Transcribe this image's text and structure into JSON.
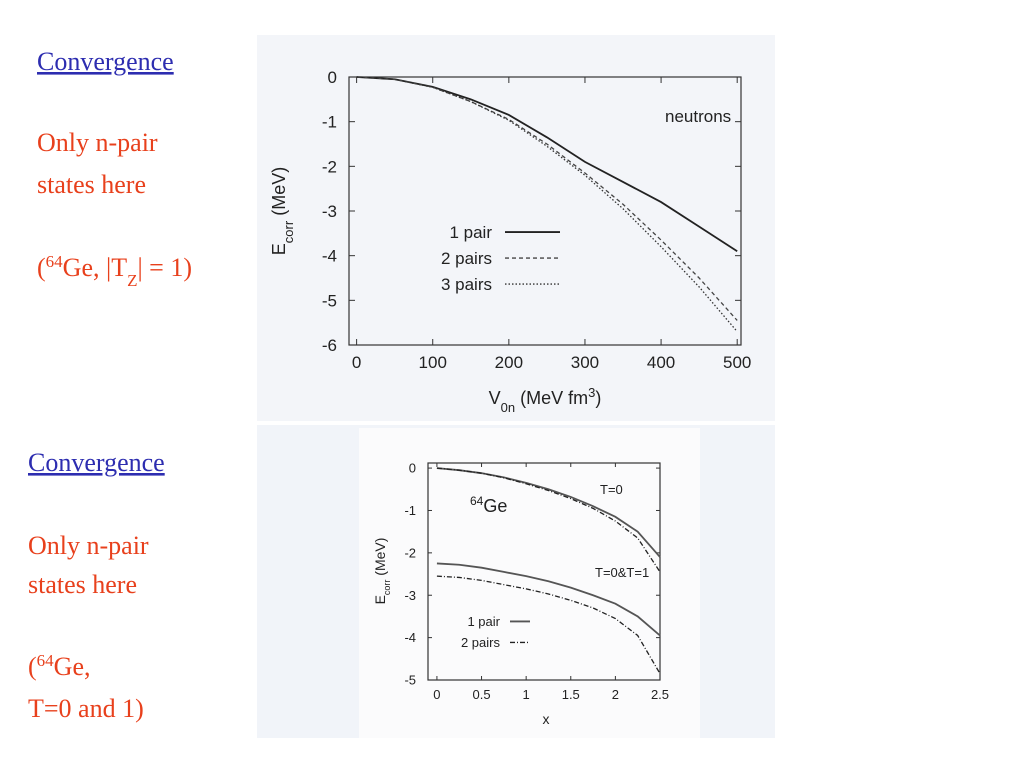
{
  "slide": {
    "sections": [
      {
        "heading": "Convergence",
        "lines": [
          "Only n-pair",
          "states here"
        ],
        "note": [
          [
            {
              "t": "("
            },
            {
              "t": "64",
              "pos": "sup"
            },
            {
              "t": "Ge, |T"
            },
            {
              "t": "Z",
              "pos": "sub"
            },
            {
              "t": "| = 1)"
            }
          ]
        ]
      },
      {
        "heading": "Convergence",
        "lines": [
          "Only n-pair",
          "states here"
        ],
        "note": [
          [
            {
              "t": "("
            },
            {
              "t": "64",
              "pos": "sup"
            },
            {
              "t": "Ge,"
            }
          ],
          [
            {
              "t": "T=0 and 1)"
            }
          ]
        ]
      }
    ]
  },
  "chart_data": [
    {
      "type": "line",
      "ylabel": [
        {
          "t": "E"
        },
        {
          "t": "corr",
          "pos": "sub"
        },
        {
          "t": " (MeV)"
        }
      ],
      "xlabel": [
        {
          "t": "V"
        },
        {
          "t": "0n",
          "pos": "sub"
        },
        {
          "t": " (MeV fm"
        },
        {
          "t": "3",
          "pos": "sup"
        },
        {
          "t": ")"
        }
      ],
      "annotation": [
        {
          "t": "neutrons"
        }
      ],
      "x": [
        0,
        50,
        100,
        150,
        200,
        250,
        300,
        350,
        400,
        450,
        500
      ],
      "series": [
        {
          "name": "1 pair",
          "color": "#222222",
          "dash": "solid",
          "values": [
            0,
            -0.05,
            -0.22,
            -0.5,
            -0.85,
            -1.35,
            -1.9,
            -2.35,
            -2.8,
            -3.35,
            -3.9
          ]
        },
        {
          "name": "2 pairs",
          "color": "#444444",
          "dash": "dashed",
          "values": [
            0,
            -0.05,
            -0.23,
            -0.55,
            -0.95,
            -1.5,
            -2.15,
            -2.85,
            -3.65,
            -4.5,
            -5.45
          ]
        },
        {
          "name": "3 pairs",
          "color": "#333333",
          "dash": "dotted",
          "values": [
            0,
            -0.05,
            -0.23,
            -0.55,
            -0.97,
            -1.55,
            -2.2,
            -2.95,
            -3.8,
            -4.7,
            -5.7
          ]
        }
      ],
      "xlim": [
        -10,
        505
      ],
      "ylim": [
        -6,
        0
      ],
      "xticks": [
        0,
        100,
        200,
        300,
        400,
        500
      ],
      "yticks": [
        0,
        -1,
        -2,
        -3,
        -4,
        -5,
        -6
      ]
    },
    {
      "type": "line",
      "ylabel": [
        {
          "t": "E"
        },
        {
          "t": "corr",
          "pos": "sub"
        },
        {
          "t": " (MeV)"
        }
      ],
      "xlabel": [
        {
          "t": "x"
        }
      ],
      "annotation": [
        {
          "t": "64",
          "pos": "sup"
        },
        {
          "t": "Ge"
        }
      ],
      "curve_labels": [
        "T=0",
        "T=0&T=1"
      ],
      "x": [
        0,
        0.25,
        0.5,
        0.75,
        1,
        1.25,
        1.5,
        1.75,
        2,
        2.25,
        2.5
      ],
      "series": [
        {
          "name": "1 pair",
          "color": "#555555",
          "dash": "solid",
          "curves": [
            [
              0,
              -0.05,
              -0.12,
              -0.22,
              -0.35,
              -0.5,
              -0.68,
              -0.9,
              -1.15,
              -1.5,
              -2.1
            ],
            [
              -2.25,
              -2.28,
              -2.35,
              -2.45,
              -2.55,
              -2.67,
              -2.82,
              -3.0,
              -3.2,
              -3.5,
              -3.95
            ]
          ]
        },
        {
          "name": "2 pairs",
          "color": "#222222",
          "dash": "dashdot",
          "curves": [
            [
              0,
              -0.05,
              -0.12,
              -0.23,
              -0.37,
              -0.53,
              -0.72,
              -0.95,
              -1.25,
              -1.65,
              -2.45
            ],
            [
              -2.55,
              -2.58,
              -2.65,
              -2.75,
              -2.85,
              -2.97,
              -3.12,
              -3.3,
              -3.55,
              -3.95,
              -4.85
            ]
          ]
        }
      ],
      "xlim": [
        -0.1,
        2.5
      ],
      "ylim": [
        -5,
        0.12
      ],
      "xticks": [
        0,
        0.5,
        1,
        1.5,
        2,
        2.5
      ],
      "yticks": [
        0,
        -1,
        -2,
        -3,
        -4,
        -5
      ]
    }
  ]
}
